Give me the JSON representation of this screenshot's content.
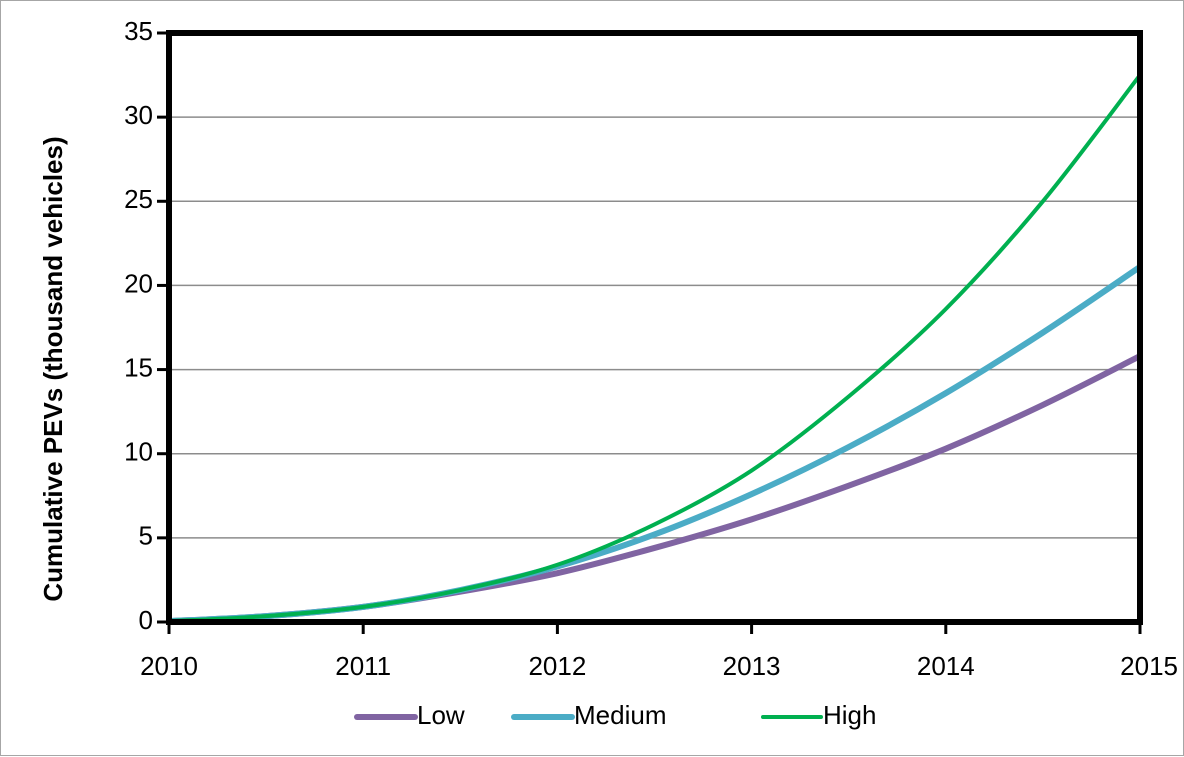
{
  "chart_data": {
    "type": "line",
    "title": "",
    "xlabel": "",
    "ylabel": "Cumulative PEVs (thousand vehicles)",
    "xlim": [
      2010,
      2015
    ],
    "ylim": [
      0,
      35
    ],
    "x_ticks": [
      "2010",
      "2011",
      "2012",
      "2013",
      "2014",
      "2015"
    ],
    "y_ticks": [
      "0",
      "5",
      "10",
      "15",
      "20",
      "25",
      "30",
      "35"
    ],
    "grid": "horizontal",
    "legend_position": "bottom",
    "series": [
      {
        "name": "Low",
        "color": "#8064a2",
        "x": [
          2010,
          2010.5,
          2011,
          2011.5,
          2012,
          2012.5,
          2013,
          2013.5,
          2014,
          2014.5,
          2015
        ],
        "values": [
          0.05,
          0.35,
          0.9,
          1.8,
          2.9,
          4.4,
          6.1,
          8.1,
          10.3,
          12.9,
          15.8
        ]
      },
      {
        "name": "Medium",
        "color": "#4bacc6",
        "x": [
          2010,
          2010.5,
          2011,
          2011.5,
          2012,
          2012.5,
          2013,
          2013.5,
          2014,
          2014.5,
          2015
        ],
        "values": [
          0.05,
          0.35,
          0.9,
          1.9,
          3.3,
          5.2,
          7.6,
          10.4,
          13.6,
          17.2,
          21.1
        ]
      },
      {
        "name": "High",
        "color": "#00b050",
        "x": [
          2010,
          2010.5,
          2011,
          2011.5,
          2012,
          2012.5,
          2013,
          2013.5,
          2014,
          2014.5,
          2015
        ],
        "values": [
          0.05,
          0.35,
          0.9,
          1.9,
          3.4,
          5.8,
          9.0,
          13.4,
          18.6,
          25.0,
          32.5
        ]
      }
    ]
  }
}
